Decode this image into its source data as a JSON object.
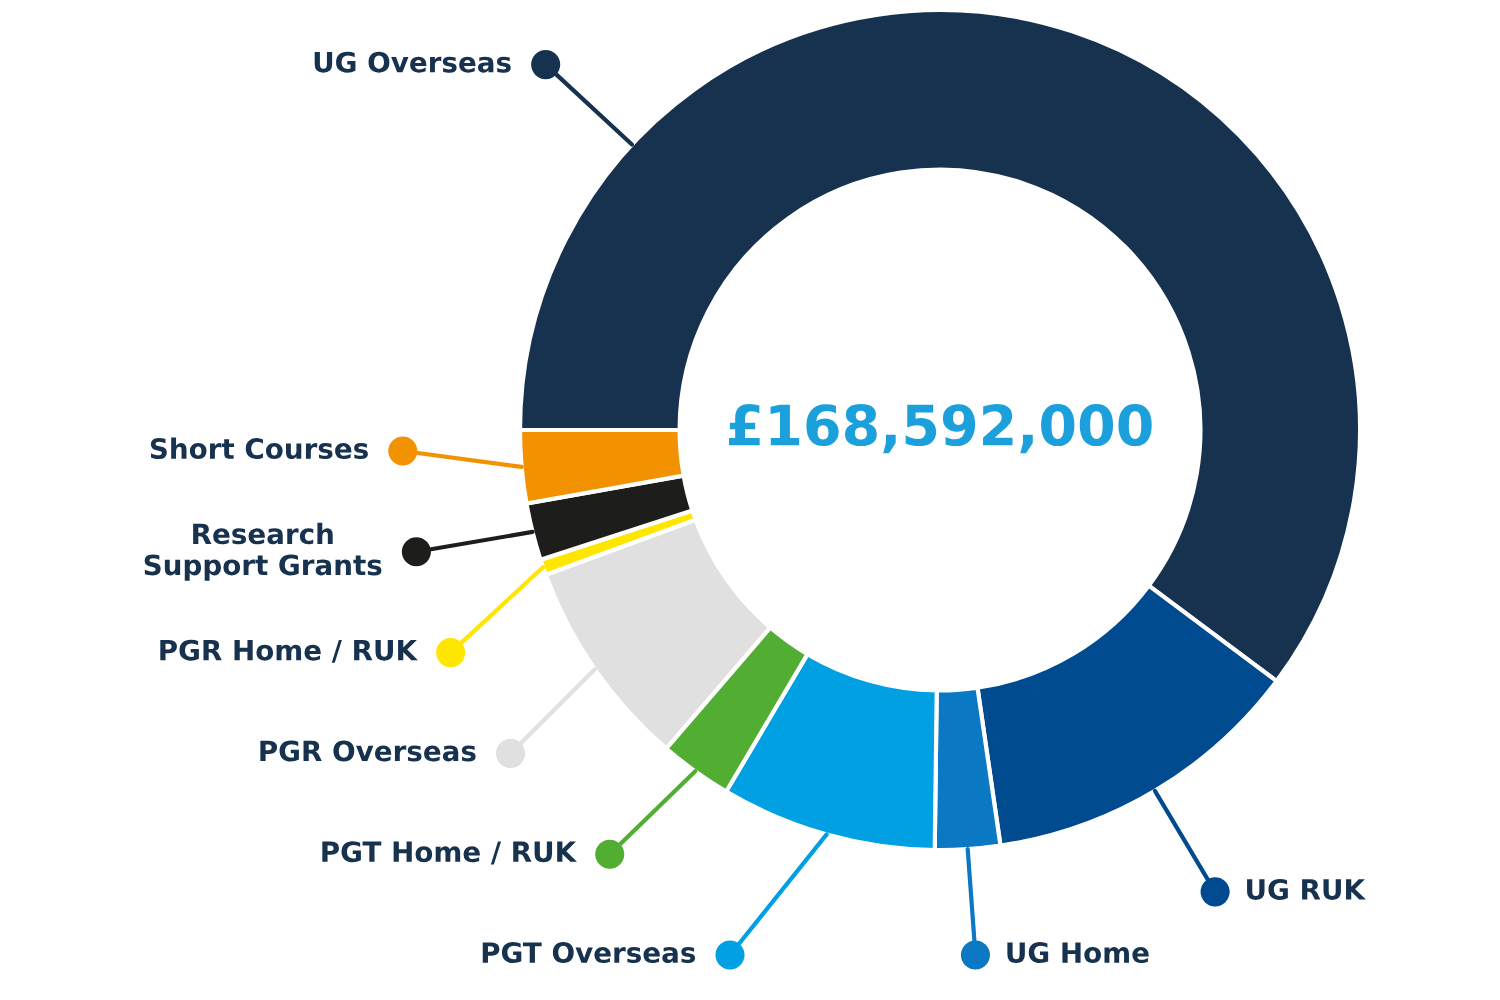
{
  "chart_data": {
    "type": "donut",
    "categories": [
      "UG Overseas",
      "UG RUK",
      "UG Home",
      "PGT Overseas",
      "PGT Home / RUK",
      "PGR Overseas",
      "PGR Home / RUK",
      "Research\nSupport Grants",
      "Short Courses"
    ],
    "values": [
      60.2,
      12.5,
      2.5,
      8.3,
      2.8,
      8.1,
      0.6,
      2.2,
      2.8
    ],
    "colors": [
      "#17324f",
      "#004a8f",
      "#0a78c2",
      "#00a0e3",
      "#52ae32",
      "#e0e0e0",
      "#ffe600",
      "#1d1d1b",
      "#f39200"
    ],
    "annotations": [
      "£168,592,000"
    ],
    "legend": "left"
  }
}
